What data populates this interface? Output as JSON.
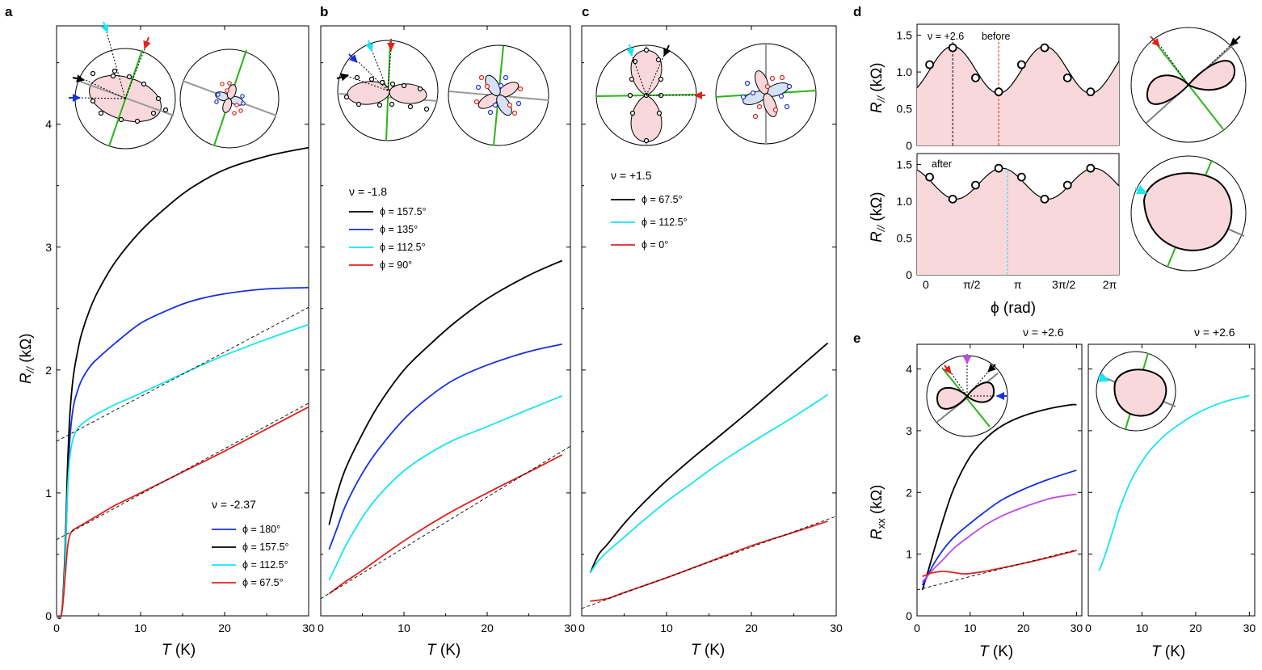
{
  "colors": {
    "black": "#000000",
    "blue": "#1530e0",
    "cyan": "#16e6f0",
    "red": "#e0231c",
    "magenta": "#c04ae8",
    "green": "#2bb41a",
    "gray": "#9a9a9a",
    "pink": "#f8d8da",
    "lightblue": "#d6e2f6"
  },
  "panels": {
    "a": {
      "letter": "a"
    },
    "b": {
      "letter": "b"
    },
    "c": {
      "letter": "c"
    },
    "d": {
      "letter": "d"
    },
    "e": {
      "letter": "e"
    }
  },
  "labels": {
    "ylabel_main": "R",
    "ylabel_main_sub": "//",
    "ylabel_unit": " (kΩ)",
    "xlabel_T": "T",
    "xlabel_T_unit": " (K)",
    "ylabel_e": "R",
    "ylabel_e_sub": "xx",
    "xlabel_phi": "ϕ (rad)"
  },
  "chart_data": [
    {
      "id": "a",
      "type": "line",
      "xlim": [
        0,
        30
      ],
      "ylim": [
        0,
        4.8
      ],
      "xticks": [
        "0",
        "10",
        "20",
        "30"
      ],
      "yticks": [
        "0",
        "1",
        "2",
        "3",
        "4"
      ],
      "legend_title": "ν = -2.37",
      "series": [
        {
          "name": "ϕ = 180°",
          "color": "blue",
          "x": [
            0,
            0.6,
            1,
            1.3,
            1.6,
            2,
            2.5,
            3,
            4,
            5,
            7,
            10,
            13,
            16,
            20,
            25,
            30
          ],
          "y": [
            0,
            0.02,
            0.4,
            1.0,
            1.45,
            1.7,
            1.83,
            1.92,
            2.03,
            2.1,
            2.22,
            2.38,
            2.48,
            2.56,
            2.62,
            2.66,
            2.67
          ]
        },
        {
          "name": "ϕ = 157.5°",
          "color": "black",
          "x": [
            0,
            0.6,
            1,
            1.3,
            1.6,
            2,
            2.5,
            3,
            4,
            5,
            7,
            10,
            13,
            16,
            20,
            25,
            30
          ],
          "y": [
            0,
            0.02,
            0.5,
            1.2,
            1.65,
            1.95,
            2.15,
            2.3,
            2.5,
            2.65,
            2.88,
            3.13,
            3.32,
            3.48,
            3.63,
            3.74,
            3.81
          ]
        },
        {
          "name": "ϕ = 112.5°",
          "color": "cyan",
          "x": [
            0,
            0.6,
            1,
            1.3,
            1.6,
            2,
            2.5,
            3,
            4,
            5,
            7,
            10,
            15,
            20,
            25,
            30
          ],
          "y": [
            0,
            0.02,
            0.4,
            1.0,
            1.3,
            1.45,
            1.52,
            1.56,
            1.61,
            1.65,
            1.72,
            1.81,
            1.97,
            2.12,
            2.25,
            2.37
          ]
        },
        {
          "name": "ϕ = 67.5°",
          "color": "red",
          "x": [
            0,
            0.6,
            1,
            1.3,
            1.6,
            2,
            2.5,
            3,
            4,
            5,
            7,
            10,
            15,
            20,
            25,
            30
          ],
          "y": [
            0,
            0.02,
            0.3,
            0.55,
            0.66,
            0.7,
            0.72,
            0.74,
            0.78,
            0.82,
            0.9,
            1.0,
            1.17,
            1.34,
            1.52,
            1.7
          ]
        }
      ],
      "fits": [
        {
          "x": [
            0,
            30
          ],
          "y": [
            1.42,
            2.51
          ]
        },
        {
          "x": [
            0,
            30
          ],
          "y": [
            0.62,
            1.73
          ]
        }
      ]
    },
    {
      "id": "b",
      "type": "line",
      "xlim": [
        0,
        30
      ],
      "ylim": [
        0,
        4.8
      ],
      "xticks": [
        "0",
        "10",
        "20",
        "30"
      ],
      "legend_title": "ν = -1.8",
      "series": [
        {
          "name": "ϕ = 157.5°",
          "color": "black",
          "x": [
            1,
            2,
            3,
            5,
            7,
            10,
            13,
            16,
            20,
            25,
            29
          ],
          "y": [
            0.74,
            1.0,
            1.2,
            1.48,
            1.72,
            2.0,
            2.2,
            2.38,
            2.58,
            2.77,
            2.89
          ]
        },
        {
          "name": "ϕ = 135°",
          "color": "blue",
          "x": [
            1,
            2,
            3,
            5,
            7,
            10,
            13,
            16,
            20,
            25,
            29
          ],
          "y": [
            0.54,
            0.72,
            0.9,
            1.16,
            1.36,
            1.6,
            1.78,
            1.92,
            2.04,
            2.15,
            2.21
          ]
        },
        {
          "name": "ϕ = 112.5°",
          "color": "cyan",
          "x": [
            1,
            2,
            3,
            5,
            7,
            10,
            13,
            16,
            20,
            25,
            29
          ],
          "y": [
            0.29,
            0.43,
            0.57,
            0.8,
            0.98,
            1.18,
            1.32,
            1.43,
            1.54,
            1.68,
            1.79
          ]
        },
        {
          "name": "ϕ = 90°",
          "color": "red",
          "x": [
            1,
            3,
            5,
            10,
            15,
            20,
            25,
            29
          ],
          "y": [
            0.18,
            0.28,
            0.37,
            0.61,
            0.82,
            1.0,
            1.17,
            1.31
          ]
        }
      ],
      "fits": [
        {
          "x": [
            0,
            30
          ],
          "y": [
            0.14,
            1.38
          ]
        }
      ]
    },
    {
      "id": "c",
      "type": "line",
      "xlim": [
        0,
        30
      ],
      "ylim": [
        0,
        4.8
      ],
      "xticks": [
        "0",
        "10",
        "20",
        "30"
      ],
      "legend_title": "ν = +1.5",
      "series": [
        {
          "name": "ϕ = 67.5°",
          "color": "black",
          "x": [
            1,
            2,
            3,
            5,
            7,
            10,
            13,
            16,
            20,
            25,
            29
          ],
          "y": [
            0.35,
            0.5,
            0.58,
            0.75,
            0.9,
            1.1,
            1.28,
            1.45,
            1.68,
            1.98,
            2.22
          ]
        },
        {
          "name": "ϕ = 112.5°",
          "color": "cyan",
          "x": [
            1,
            2,
            3,
            5,
            7,
            10,
            13,
            16,
            20,
            25,
            29
          ],
          "y": [
            0.35,
            0.45,
            0.52,
            0.64,
            0.76,
            0.93,
            1.08,
            1.23,
            1.41,
            1.62,
            1.8
          ]
        },
        {
          "name": "ϕ = 0°",
          "color": "red",
          "x": [
            1,
            3,
            5,
            10,
            15,
            20,
            25,
            29
          ],
          "y": [
            0.12,
            0.14,
            0.19,
            0.31,
            0.44,
            0.57,
            0.68,
            0.77
          ]
        }
      ],
      "fits": [
        {
          "x": [
            0,
            30
          ],
          "y": [
            0.06,
            0.81
          ]
        }
      ]
    },
    {
      "id": "d_top",
      "type": "line",
      "xlim": [
        -0.3,
        6.6
      ],
      "ylim": [
        0,
        1.65
      ],
      "yticks": [
        "0",
        "0.5",
        "1.0",
        "1.5"
      ],
      "annotations": [
        "ν = +2.6",
        "before"
      ],
      "points_x": [
        0.13,
        0.92,
        1.7,
        2.49,
        3.27,
        4.06,
        4.84,
        5.63
      ],
      "points_y": [
        1.1,
        1.33,
        0.92,
        0.73,
        1.1,
        1.33,
        0.92,
        0.73
      ],
      "markers": [
        {
          "x": 0.92,
          "color": "black"
        },
        {
          "x": 2.49,
          "color": "red"
        }
      ]
    },
    {
      "id": "d_bottom",
      "type": "line",
      "xlim": [
        -0.3,
        6.6
      ],
      "ylim": [
        0,
        1.65
      ],
      "xticks": [
        "0",
        "π/2",
        "π",
        "3π/2",
        "2π"
      ],
      "yticks": [
        "0",
        "0.5",
        "1.0",
        "1.5"
      ],
      "annotations": [
        "after"
      ],
      "points_x": [
        0.13,
        0.92,
        1.7,
        2.49,
        3.27,
        4.06,
        4.84,
        5.63
      ],
      "points_y": [
        1.33,
        1.03,
        1.22,
        1.45,
        1.33,
        1.03,
        1.22,
        1.45
      ],
      "markers": [
        {
          "x": 2.79,
          "color": "cyan"
        }
      ]
    },
    {
      "id": "e_left",
      "type": "line",
      "xlim": [
        0,
        31
      ],
      "ylim": [
        0,
        4.4
      ],
      "xticks": [
        "0",
        "10",
        "20",
        "30"
      ],
      "yticks": [
        "0",
        "1",
        "2",
        "3",
        "4"
      ],
      "annotation": "ν = +2.6",
      "series": [
        {
          "name": "black",
          "color": "black",
          "x": [
            1,
            2,
            3,
            5,
            7,
            10,
            13,
            16,
            20,
            25,
            29,
            30
          ],
          "y": [
            0.42,
            0.7,
            1.0,
            1.58,
            2.08,
            2.58,
            2.88,
            3.08,
            3.24,
            3.36,
            3.42,
            3.42
          ]
        },
        {
          "name": "blue",
          "color": "blue",
          "x": [
            1,
            2,
            3,
            5,
            7,
            10,
            13,
            16,
            20,
            25,
            30
          ],
          "y": [
            0.5,
            0.65,
            0.82,
            1.08,
            1.28,
            1.5,
            1.7,
            1.88,
            2.05,
            2.22,
            2.36
          ]
        },
        {
          "name": "magenta",
          "color": "magenta",
          "x": [
            1,
            2,
            3,
            5,
            7,
            10,
            13,
            16,
            20,
            25,
            29,
            30
          ],
          "y": [
            0.55,
            0.65,
            0.75,
            0.92,
            1.1,
            1.3,
            1.48,
            1.62,
            1.76,
            1.9,
            1.96,
            1.97
          ]
        },
        {
          "name": "red",
          "color": "red",
          "x": [
            1,
            2,
            3,
            5,
            7,
            9,
            12,
            15,
            20,
            25,
            30
          ],
          "y": [
            0.64,
            0.67,
            0.7,
            0.72,
            0.7,
            0.68,
            0.71,
            0.76,
            0.85,
            0.95,
            1.06
          ]
        }
      ],
      "fits": [
        {
          "x": [
            0,
            30
          ],
          "y": [
            0.42,
            1.07
          ]
        }
      ]
    },
    {
      "id": "e_right",
      "type": "line",
      "xlim": [
        0,
        31
      ],
      "ylim": [
        0,
        4.4
      ],
      "xticks": [
        "0",
        "10",
        "20",
        "30"
      ],
      "annotation": "ν = +2.6",
      "series": [
        {
          "name": "cyan",
          "color": "cyan",
          "x": [
            2,
            3,
            4,
            5,
            6,
            8,
            10,
            12,
            15,
            20,
            25,
            30
          ],
          "y": [
            0.73,
            0.95,
            1.22,
            1.5,
            1.78,
            2.2,
            2.5,
            2.73,
            2.98,
            3.27,
            3.46,
            3.57
          ]
        }
      ]
    }
  ]
}
